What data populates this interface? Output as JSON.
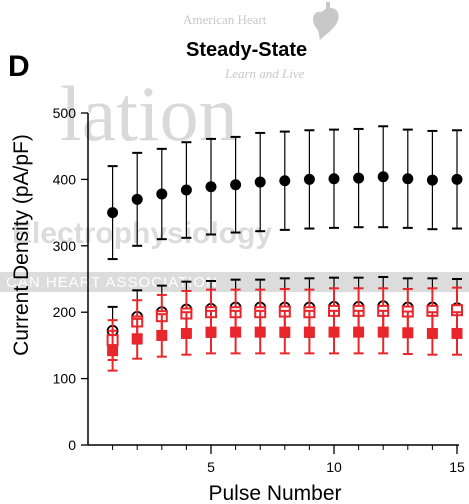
{
  "panel_letter": "D",
  "watermark": {
    "org_name": "American Heart",
    "tagline": "Learn and Live",
    "journal_fragment": "lation",
    "subject_fragment": "Electrophysiology",
    "band_text": "CAN HEART ASSOCIATION"
  },
  "colors": {
    "black_series": "#000000",
    "red_series": "#e8262b",
    "watermark": "#d9d9d9"
  },
  "chart_data": {
    "type": "scatter",
    "title": "Steady-State",
    "xlabel": "Pulse Number",
    "ylabel": "Current Density (pA/pF)",
    "xlim": [
      0,
      15
    ],
    "ylim": [
      0,
      500
    ],
    "xticks": [
      5,
      10,
      15
    ],
    "xticks_minor": [
      1,
      2,
      3,
      4,
      5,
      6,
      7,
      8,
      9,
      10,
      11,
      12,
      13,
      14,
      15
    ],
    "yticks": [
      0,
      100,
      200,
      300,
      400,
      500
    ],
    "grid": false,
    "legend": "none",
    "series": [
      {
        "marker": "filled-circle",
        "color": "#000000",
        "x": [
          1,
          2,
          3,
          4,
          5,
          6,
          7,
          8,
          9,
          10,
          11,
          12,
          13,
          14,
          15
        ],
        "y": [
          350,
          370,
          378,
          384,
          389,
          392,
          396,
          398,
          400,
          401,
          402,
          404,
          401,
          399,
          400
        ],
        "err": [
          70,
          70,
          68,
          72,
          72,
          72,
          74,
          74,
          74,
          74,
          74,
          76,
          74,
          74,
          74
        ]
      },
      {
        "marker": "open-circle",
        "color": "#000000",
        "x": [
          1,
          2,
          3,
          4,
          5,
          6,
          7,
          8,
          9,
          10,
          11,
          12,
          13,
          14,
          15
        ],
        "y": [
          172,
          193,
          200,
          204,
          205,
          207,
          207,
          207,
          207,
          208,
          208,
          209,
          207,
          207,
          206
        ],
        "err": [
          36,
          40,
          40,
          42,
          42,
          42,
          42,
          44,
          44,
          44,
          44,
          44,
          44,
          44,
          44
        ]
      },
      {
        "marker": "open-square",
        "color": "#e8262b",
        "x": [
          1,
          2,
          3,
          4,
          5,
          6,
          7,
          8,
          9,
          10,
          11,
          12,
          13,
          14,
          15
        ],
        "y": [
          158,
          186,
          194,
          198,
          200,
          200,
          200,
          201,
          200,
          202,
          202,
          202,
          201,
          202,
          203
        ],
        "err": [
          30,
          32,
          32,
          34,
          34,
          34,
          34,
          34,
          34,
          34,
          34,
          34,
          34,
          34,
          34
        ]
      },
      {
        "marker": "filled-square",
        "color": "#e8262b",
        "x": [
          1,
          2,
          3,
          4,
          5,
          6,
          7,
          8,
          9,
          10,
          11,
          12,
          13,
          14,
          15
        ],
        "y": [
          142,
          160,
          165,
          168,
          170,
          170,
          170,
          170,
          170,
          170,
          170,
          170,
          169,
          168,
          168
        ],
        "err": [
          30,
          30,
          32,
          32,
          32,
          32,
          32,
          32,
          32,
          32,
          32,
          32,
          32,
          32,
          32
        ]
      }
    ]
  }
}
